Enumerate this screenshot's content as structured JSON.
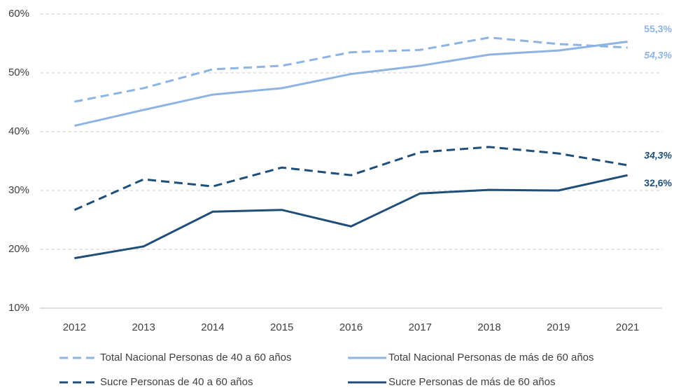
{
  "chart_data": {
    "type": "line",
    "categories": [
      "2012",
      "2013",
      "2014",
      "2015",
      "2016",
      "2017",
      "2018",
      "2019",
      "2021"
    ],
    "ylim": [
      10,
      60
    ],
    "yticks": [
      {
        "value": 10,
        "label": "10%"
      },
      {
        "value": 20,
        "label": "20%"
      },
      {
        "value": 30,
        "label": "30%"
      },
      {
        "value": 40,
        "label": "40%"
      },
      {
        "value": 50,
        "label": "50%"
      },
      {
        "value": 60,
        "label": "60%"
      }
    ],
    "grid": true,
    "legend": "bottom",
    "series": [
      {
        "name": "Total Nacional Personas de 40 a 60 años",
        "color": "#8db4e2",
        "dashed": true,
        "values": [
          45.1,
          47.4,
          50.6,
          51.2,
          53.5,
          53.9,
          56.0,
          54.9,
          54.3
        ],
        "value_labels": [
          null,
          null,
          null,
          null,
          null,
          null,
          null,
          null,
          "54,3%"
        ]
      },
      {
        "name": "Total Nacional Personas de más de 60 años",
        "color": "#8db4e2",
        "dashed": false,
        "values": [
          41.0,
          43.7,
          46.3,
          47.4,
          49.8,
          51.2,
          53.1,
          53.8,
          55.3
        ],
        "value_labels": [
          null,
          null,
          null,
          null,
          null,
          null,
          null,
          null,
          "55,3%"
        ]
      },
      {
        "name": "Sucre Personas de 40 a 60 años",
        "color": "#1f4e79",
        "dashed": true,
        "values": [
          26.7,
          31.9,
          30.7,
          33.9,
          32.6,
          36.5,
          37.4,
          36.3,
          34.3
        ],
        "value_labels": [
          null,
          null,
          null,
          null,
          null,
          null,
          null,
          null,
          "34,3%"
        ]
      },
      {
        "name": "Sucre Personas de más de 60 años",
        "color": "#1f4e79",
        "dashed": false,
        "values": [
          18.5,
          20.5,
          26.4,
          26.7,
          23.9,
          29.5,
          30.1,
          30.0,
          32.6
        ],
        "value_labels": [
          null,
          null,
          null,
          null,
          null,
          null,
          null,
          null,
          "32,6%"
        ]
      }
    ]
  }
}
